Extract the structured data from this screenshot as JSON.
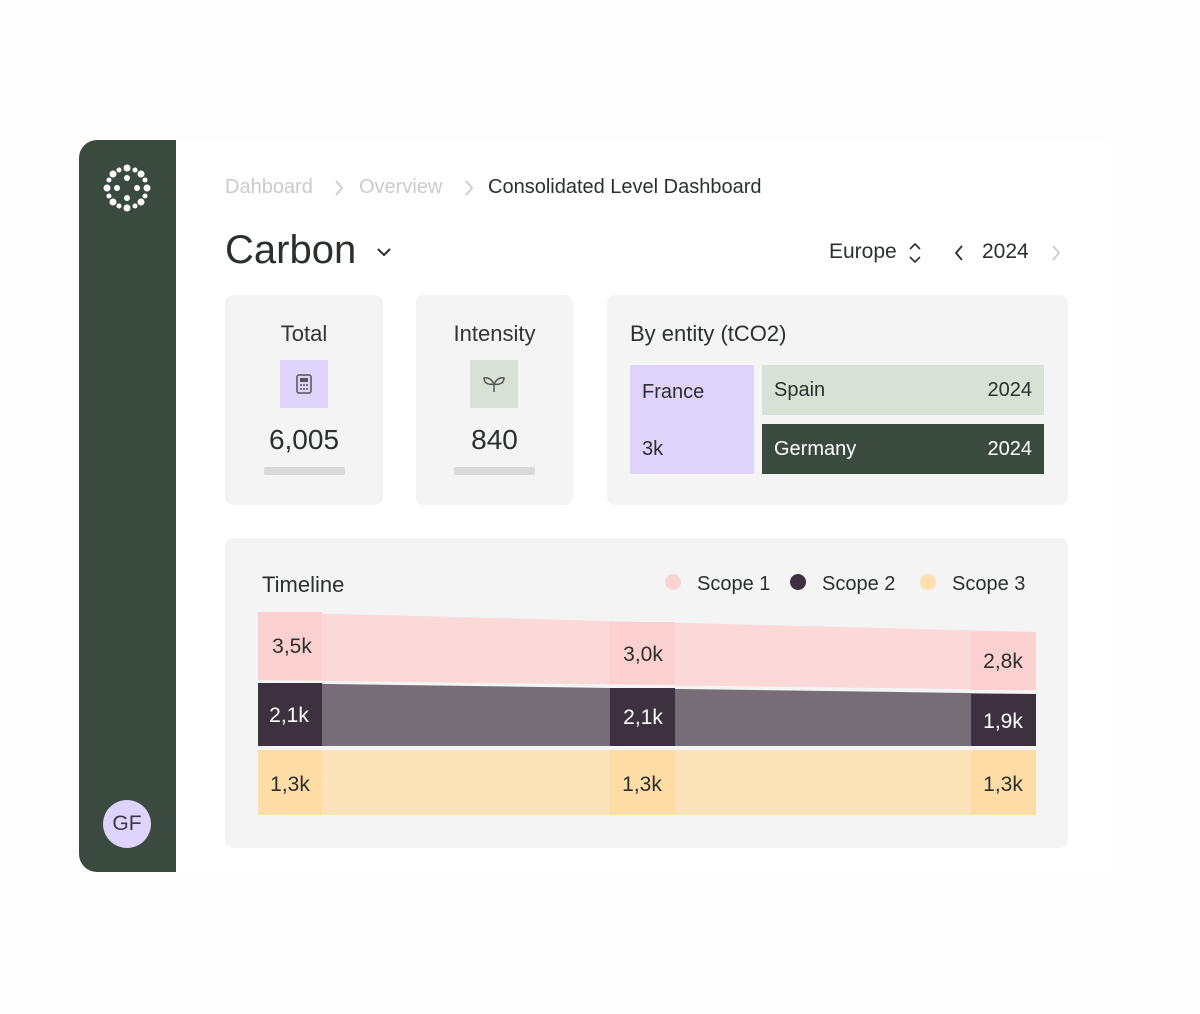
{
  "sidebar": {
    "avatar": "GF"
  },
  "breadcrumb": [
    "Dahboard",
    "Overview",
    "Consolidated Level Dashboard"
  ],
  "header": {
    "title": "Carbon",
    "region": "Europe",
    "year": "2024"
  },
  "cards": [
    {
      "title": "Total",
      "value": "6,005"
    },
    {
      "title": "Intensity",
      "value": "840"
    }
  ],
  "entity": {
    "title": "By entity (tCO2)",
    "items": [
      {
        "name": "France",
        "value": "3k"
      },
      {
        "name": "Spain",
        "value": "2024"
      },
      {
        "name": "Germany",
        "value": "2024"
      }
    ]
  },
  "timeline": {
    "title": "Timeline",
    "legend": [
      "Scope 1",
      "Scope 2",
      "Scope 3"
    ],
    "columns": [
      [
        "3,5k",
        "2,1k",
        "1,3k"
      ],
      [
        "3,0k",
        "2,1k",
        "1,3k"
      ],
      [
        "2,8k",
        "1,9k",
        "1,3k"
      ]
    ]
  }
}
